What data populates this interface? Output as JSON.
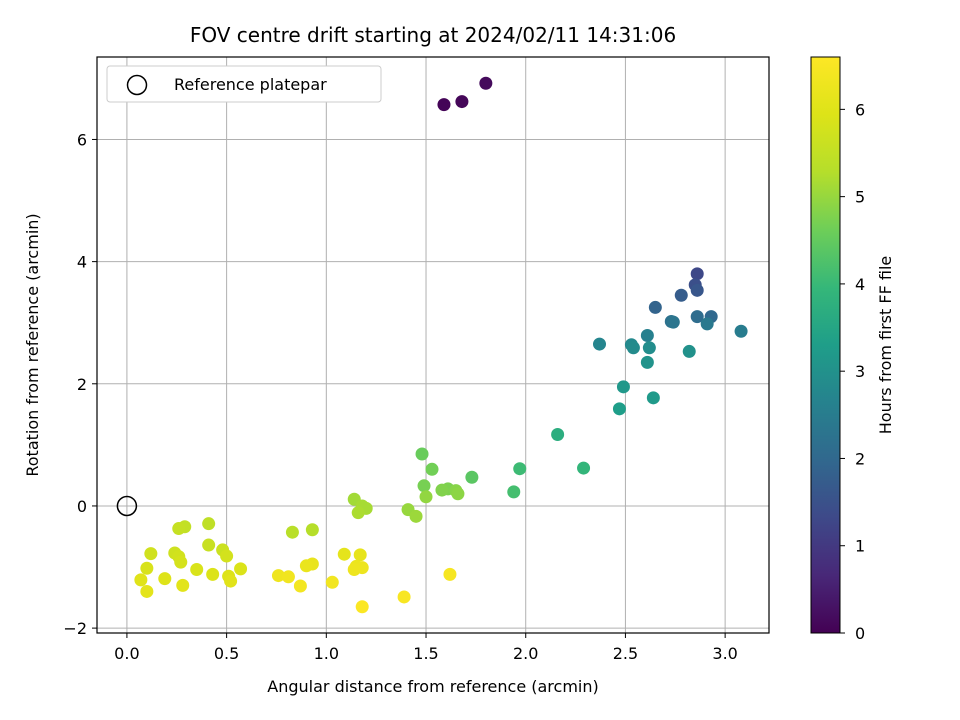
{
  "chart_data": {
    "type": "scatter",
    "title": "FOV centre drift starting at 2024/02/11 14:31:06",
    "xlabel": "Angular distance from reference (arcmin)",
    "ylabel": "Rotation from reference (arcmin)",
    "xlim": [
      -0.15,
      3.22
    ],
    "ylim": [
      -2.08,
      7.35
    ],
    "xticks": [
      0.0,
      0.5,
      1.0,
      1.5,
      2.0,
      2.5,
      3.0
    ],
    "xtick_labels": [
      "0.0",
      "0.5",
      "1.0",
      "1.5",
      "2.0",
      "2.5",
      "3.0"
    ],
    "yticks": [
      -2,
      0,
      2,
      4,
      6
    ],
    "ytick_labels": [
      "−2",
      "0",
      "2",
      "4",
      "6"
    ],
    "grid": true,
    "legend": {
      "position": "top-left",
      "entries": [
        "Reference platepar"
      ]
    },
    "reference_point": {
      "x": 0.0,
      "y": 0.0
    },
    "colorbar": {
      "label": "Hours from first FF file",
      "colormap": "viridis",
      "range": [
        0,
        6.6
      ],
      "ticks": [
        0,
        1,
        2,
        3,
        4,
        5,
        6
      ],
      "tick_labels": [
        "0",
        "1",
        "2",
        "3",
        "4",
        "5",
        "6"
      ]
    },
    "points": [
      {
        "x": 1.59,
        "y": 6.57,
        "c": 0.05
      },
      {
        "x": 1.68,
        "y": 6.62,
        "c": 0.1
      },
      {
        "x": 1.8,
        "y": 6.92,
        "c": 0.15
      },
      {
        "x": 2.86,
        "y": 3.8,
        "c": 1.3
      },
      {
        "x": 2.85,
        "y": 3.62,
        "c": 1.45
      },
      {
        "x": 2.86,
        "y": 3.53,
        "c": 1.6
      },
      {
        "x": 2.78,
        "y": 3.45,
        "c": 1.75
      },
      {
        "x": 2.65,
        "y": 3.25,
        "c": 1.9
      },
      {
        "x": 2.93,
        "y": 3.1,
        "c": 2.0
      },
      {
        "x": 2.86,
        "y": 3.1,
        "c": 2.1
      },
      {
        "x": 2.73,
        "y": 3.02,
        "c": 2.2
      },
      {
        "x": 2.74,
        "y": 3.01,
        "c": 2.3
      },
      {
        "x": 2.91,
        "y": 2.98,
        "c": 2.4
      },
      {
        "x": 3.08,
        "y": 2.86,
        "c": 2.5
      },
      {
        "x": 2.61,
        "y": 2.79,
        "c": 2.6
      },
      {
        "x": 2.37,
        "y": 2.65,
        "c": 2.7
      },
      {
        "x": 2.53,
        "y": 2.64,
        "c": 2.8
      },
      {
        "x": 2.54,
        "y": 2.59,
        "c": 2.85
      },
      {
        "x": 2.62,
        "y": 2.59,
        "c": 2.9
      },
      {
        "x": 2.82,
        "y": 2.53,
        "c": 3.0
      },
      {
        "x": 2.61,
        "y": 2.35,
        "c": 3.05
      },
      {
        "x": 2.49,
        "y": 1.95,
        "c": 3.15
      },
      {
        "x": 2.64,
        "y": 1.77,
        "c": 3.2
      },
      {
        "x": 2.47,
        "y": 1.59,
        "c": 3.3
      },
      {
        "x": 2.16,
        "y": 1.17,
        "c": 3.7
      },
      {
        "x": 2.29,
        "y": 0.62,
        "c": 3.9
      },
      {
        "x": 1.97,
        "y": 0.61,
        "c": 4.05
      },
      {
        "x": 1.94,
        "y": 0.23,
        "c": 4.15
      },
      {
        "x": 1.73,
        "y": 0.47,
        "c": 4.4
      },
      {
        "x": 1.48,
        "y": 0.85,
        "c": 4.55
      },
      {
        "x": 1.53,
        "y": 0.6,
        "c": 4.65
      },
      {
        "x": 1.49,
        "y": 0.33,
        "c": 4.7
      },
      {
        "x": 1.61,
        "y": 0.28,
        "c": 4.75
      },
      {
        "x": 1.58,
        "y": 0.26,
        "c": 4.8
      },
      {
        "x": 1.65,
        "y": 0.25,
        "c": 4.85
      },
      {
        "x": 1.66,
        "y": 0.2,
        "c": 4.9
      },
      {
        "x": 1.5,
        "y": 0.15,
        "c": 4.95
      },
      {
        "x": 1.41,
        "y": -0.06,
        "c": 5.0
      },
      {
        "x": 1.45,
        "y": -0.17,
        "c": 5.05
      },
      {
        "x": 1.14,
        "y": 0.11,
        "c": 5.1
      },
      {
        "x": 1.18,
        "y": 0.0,
        "c": 5.15
      },
      {
        "x": 1.2,
        "y": -0.04,
        "c": 5.15
      },
      {
        "x": 1.16,
        "y": -0.11,
        "c": 5.2
      },
      {
        "x": 0.93,
        "y": -0.39,
        "c": 5.3
      },
      {
        "x": 0.83,
        "y": -0.43,
        "c": 5.35
      },
      {
        "x": 0.41,
        "y": -0.29,
        "c": 5.45
      },
      {
        "x": 0.29,
        "y": -0.34,
        "c": 5.5
      },
      {
        "x": 0.26,
        "y": -0.37,
        "c": 5.55
      },
      {
        "x": 0.41,
        "y": -0.64,
        "c": 5.6
      },
      {
        "x": 0.48,
        "y": -0.72,
        "c": 5.65
      },
      {
        "x": 0.24,
        "y": -0.77,
        "c": 5.7
      },
      {
        "x": 0.12,
        "y": -0.78,
        "c": 5.72
      },
      {
        "x": 0.26,
        "y": -0.83,
        "c": 5.75
      },
      {
        "x": 0.5,
        "y": -0.82,
        "c": 5.78
      },
      {
        "x": 0.27,
        "y": -0.92,
        "c": 5.8
      },
      {
        "x": 0.1,
        "y": -1.02,
        "c": 5.85
      },
      {
        "x": 0.35,
        "y": -1.04,
        "c": 5.88
      },
      {
        "x": 0.57,
        "y": -1.03,
        "c": 5.9
      },
      {
        "x": 0.43,
        "y": -1.12,
        "c": 5.92
      },
      {
        "x": 0.51,
        "y": -1.15,
        "c": 5.95
      },
      {
        "x": 0.19,
        "y": -1.19,
        "c": 5.97
      },
      {
        "x": 0.07,
        "y": -1.21,
        "c": 6.0
      },
      {
        "x": 0.52,
        "y": -1.23,
        "c": 6.02
      },
      {
        "x": 0.28,
        "y": -1.3,
        "c": 6.05
      },
      {
        "x": 0.1,
        "y": -1.4,
        "c": 6.08
      },
      {
        "x": 1.09,
        "y": -0.79,
        "c": 6.1
      },
      {
        "x": 1.17,
        "y": -0.8,
        "c": 6.15
      },
      {
        "x": 0.93,
        "y": -0.95,
        "c": 6.18
      },
      {
        "x": 0.9,
        "y": -0.98,
        "c": 6.2
      },
      {
        "x": 1.15,
        "y": -0.99,
        "c": 6.25
      },
      {
        "x": 1.18,
        "y": -1.01,
        "c": 6.28
      },
      {
        "x": 1.14,
        "y": -1.04,
        "c": 6.3
      },
      {
        "x": 0.76,
        "y": -1.14,
        "c": 6.32
      },
      {
        "x": 0.81,
        "y": -1.16,
        "c": 6.35
      },
      {
        "x": 1.03,
        "y": -1.25,
        "c": 6.38
      },
      {
        "x": 0.87,
        "y": -1.31,
        "c": 6.4
      },
      {
        "x": 1.62,
        "y": -1.12,
        "c": 6.45
      },
      {
        "x": 1.39,
        "y": -1.49,
        "c": 6.5
      },
      {
        "x": 1.18,
        "y": -1.65,
        "c": 6.55
      }
    ]
  }
}
